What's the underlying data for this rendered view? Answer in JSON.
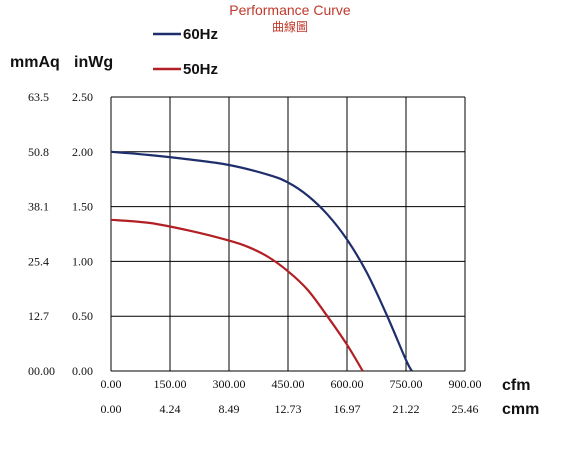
{
  "chart_data": {
    "type": "line",
    "title": "Performance Curve",
    "subtitle": "曲線圖",
    "y_units": [
      "mmAq",
      "inWg"
    ],
    "x_units": [
      "cfm",
      "cmm"
    ],
    "xlim": [
      0,
      900
    ],
    "ylim": [
      0,
      2.5
    ],
    "x_ticks": [
      "0.00",
      "150.00",
      "300.00",
      "450.00",
      "600.00",
      "750.00",
      "900.00"
    ],
    "x_ticks_secondary": [
      "0.00",
      "4.24",
      "8.49",
      "12.73",
      "16.97",
      "21.22",
      "25.46"
    ],
    "y_ticks": [
      "0.00",
      "0.50",
      "1.00",
      "1.50",
      "2.00",
      "2.50"
    ],
    "y_ticks_secondary": [
      "00.00",
      "12.7",
      "25.4",
      "38.1",
      "50.8",
      "63.5"
    ],
    "grid": true,
    "legend_position": "top-center",
    "series": [
      {
        "name": "60Hz",
        "color": "#1f2f6b",
        "points": [
          [
            0,
            2.0
          ],
          [
            100,
            1.97
          ],
          [
            200,
            1.93
          ],
          [
            300,
            1.88
          ],
          [
            400,
            1.79
          ],
          [
            450,
            1.72
          ],
          [
            500,
            1.6
          ],
          [
            550,
            1.43
          ],
          [
            600,
            1.2
          ],
          [
            650,
            0.9
          ],
          [
            700,
            0.52
          ],
          [
            750,
            0.1
          ],
          [
            765,
            0.0
          ]
        ]
      },
      {
        "name": "50Hz",
        "color": "#b21f24",
        "points": [
          [
            0,
            1.38
          ],
          [
            100,
            1.35
          ],
          [
            200,
            1.28
          ],
          [
            300,
            1.19
          ],
          [
            350,
            1.13
          ],
          [
            400,
            1.04
          ],
          [
            450,
            0.91
          ],
          [
            500,
            0.74
          ],
          [
            550,
            0.5
          ],
          [
            600,
            0.24
          ],
          [
            640,
            0.0
          ]
        ]
      }
    ]
  }
}
